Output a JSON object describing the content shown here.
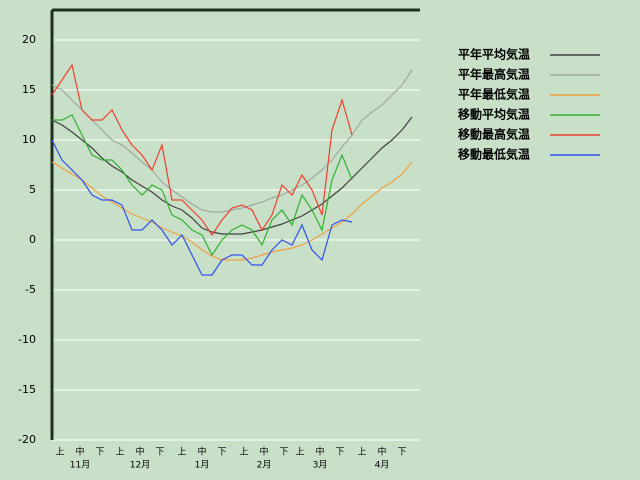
{
  "chart_data": {
    "type": "line",
    "x": [
      0,
      5,
      10,
      15,
      20,
      25,
      30,
      35,
      40,
      45,
      50,
      55,
      60,
      65,
      70,
      75,
      80,
      85,
      90,
      95,
      100,
      105,
      110,
      115,
      120,
      125,
      130,
      135,
      140,
      145,
      150,
      155,
      160,
      165,
      170,
      175,
      180
    ],
    "xlim": [
      0,
      184
    ],
    "ylim": [
      -20,
      23
    ],
    "yticks": [
      -20,
      -15,
      -10,
      -5,
      0,
      5,
      10,
      15,
      20
    ],
    "grid": true,
    "xticks": [
      {
        "value": 4,
        "label": "上"
      },
      {
        "value": 14,
        "label": "中"
      },
      {
        "value": 24,
        "label": "下"
      },
      {
        "value": 34,
        "label": "上"
      },
      {
        "value": 44,
        "label": "中"
      },
      {
        "value": 54,
        "label": "下"
      },
      {
        "value": 65,
        "label": "上"
      },
      {
        "value": 75,
        "label": "中"
      },
      {
        "value": 85,
        "label": "下"
      },
      {
        "value": 96,
        "label": "上"
      },
      {
        "value": 106,
        "label": "中"
      },
      {
        "value": 116,
        "label": "下"
      },
      {
        "value": 124,
        "label": "上"
      },
      {
        "value": 134,
        "label": "中"
      },
      {
        "value": 144,
        "label": "下"
      },
      {
        "value": 155,
        "label": "上"
      },
      {
        "value": 165,
        "label": "中"
      },
      {
        "value": 175,
        "label": "下"
      }
    ],
    "month_ticks": [
      {
        "value": 14,
        "label": "11月"
      },
      {
        "value": 44,
        "label": "12月"
      },
      {
        "value": 75,
        "label": "1月"
      },
      {
        "value": 106,
        "label": "2月"
      },
      {
        "value": 134,
        "label": "3月"
      },
      {
        "value": 165,
        "label": "4月"
      }
    ],
    "legend": "right",
    "series": [
      {
        "name": "平年平均気温",
        "color": "#404040",
        "values": [
          12,
          11.5,
          10.8,
          10,
          9.2,
          8.2,
          7.4,
          6.8,
          6,
          5.4,
          4.8,
          4,
          3.4,
          3,
          2.2,
          1.2,
          0.8,
          0.6,
          0.6,
          0.6,
          0.8,
          1,
          1.3,
          1.6,
          2,
          2.4,
          3,
          3.6,
          4.4,
          5.2,
          6.2,
          7.2,
          8.2,
          9.2,
          10,
          11,
          12.3
        ]
      },
      {
        "name": "平年最高気温",
        "color": "#a0a8a0",
        "values": [
          15.5,
          15,
          14,
          13,
          12,
          11,
          10,
          9.5,
          8.7,
          7.8,
          7,
          5.8,
          5,
          4.3,
          3.6,
          3,
          2.8,
          2.8,
          3,
          3.2,
          3.5,
          3.8,
          4.2,
          4.5,
          5,
          5.5,
          6.2,
          7,
          8,
          9.3,
          10.5,
          12,
          12.8,
          13.5,
          14.5,
          15.5,
          17
        ]
      },
      {
        "name": "平年最低気温",
        "color": "#f0a040",
        "values": [
          7.8,
          7.2,
          6.6,
          6,
          5.2,
          4.4,
          3.8,
          3.2,
          2.6,
          2.2,
          1.8,
          1.2,
          0.8,
          0.4,
          -0.2,
          -1,
          -1.6,
          -2,
          -2,
          -2,
          -1.8,
          -1.5,
          -1.2,
          -1,
          -0.8,
          -0.5,
          0,
          0.6,
          1.2,
          1.8,
          2.6,
          3.6,
          4.4,
          5.2,
          5.8,
          6.6,
          7.8
        ]
      },
      {
        "name": "移動平均気温",
        "color": "#30b030",
        "values": [
          12,
          12,
          12.5,
          10.5,
          8.5,
          8,
          8,
          7,
          5.5,
          4.5,
          5.5,
          5,
          2.5,
          2,
          1,
          0.5,
          -1.5,
          0,
          1,
          1.5,
          1,
          -0.5,
          2,
          3,
          1.5,
          4.5,
          3,
          1,
          6,
          8.5,
          6,
          null,
          null,
          null,
          null,
          null,
          null
        ]
      },
      {
        "name": "移動最高気温",
        "color": "#f04030",
        "values": [
          14.5,
          16,
          17.5,
          13,
          12,
          12,
          13,
          11,
          9.5,
          8.5,
          7,
          9.5,
          4,
          4,
          3,
          2,
          0.5,
          2,
          3.2,
          3.5,
          3,
          1,
          2.5,
          5.5,
          4.5,
          6.5,
          5,
          2.5,
          11,
          14,
          10.5,
          null,
          null,
          null,
          null,
          null,
          null
        ]
      },
      {
        "name": "移動最低気温",
        "color": "#3050f0",
        "values": [
          10,
          8,
          7,
          6,
          4.5,
          4,
          4,
          3.5,
          1,
          1,
          2,
          1,
          -0.5,
          0.5,
          -1.5,
          -3.5,
          -3.5,
          -2,
          -1.5,
          -1.5,
          -2.5,
          -2.5,
          -1,
          0,
          -0.5,
          1.5,
          -1,
          -2,
          1.5,
          2,
          1.8,
          null,
          null,
          null,
          null,
          null,
          null
        ]
      }
    ]
  }
}
